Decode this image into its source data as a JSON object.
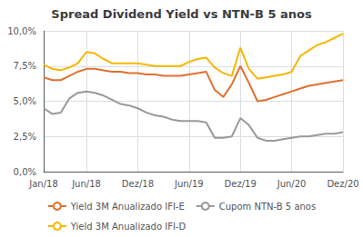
{
  "chart_data": {
    "type": "line",
    "title": "Spread Dividend Yield vs NTN-B 5 anos",
    "categories": [
      "Jan/18",
      null,
      null,
      null,
      null,
      "Jun/18",
      null,
      null,
      null,
      null,
      null,
      "Dez/18",
      null,
      null,
      null,
      null,
      null,
      "Jun/19",
      null,
      null,
      null,
      null,
      null,
      "Dez/19",
      null,
      null,
      null,
      null,
      null,
      "Jun/20",
      null,
      null,
      null,
      null,
      null,
      "Dez/20"
    ],
    "series": [
      {
        "name": "Yield 3M Anualizado IFI-E",
        "color": "#e07030",
        "values": [
          6.7,
          6.5,
          6.5,
          6.8,
          7.1,
          7.3,
          7.3,
          7.2,
          7.1,
          7.1,
          7.0,
          7.0,
          6.9,
          6.9,
          6.8,
          6.8,
          6.8,
          6.9,
          7.0,
          7.1,
          5.8,
          5.3,
          6.2,
          7.5,
          6.3,
          5.0,
          5.1,
          5.3,
          5.5,
          5.7,
          5.9,
          6.1,
          6.2,
          6.3,
          6.4,
          6.5
        ]
      },
      {
        "name": "Cupom NTN-B 5 anos",
        "color": "#999999",
        "values": [
          4.5,
          4.1,
          4.2,
          5.2,
          5.6,
          5.7,
          5.6,
          5.4,
          5.1,
          4.8,
          4.7,
          4.5,
          4.2,
          4.0,
          3.9,
          3.7,
          3.6,
          3.6,
          3.6,
          3.5,
          2.4,
          2.4,
          2.5,
          3.8,
          3.3,
          2.4,
          2.2,
          2.2,
          2.3,
          2.4,
          2.5,
          2.5,
          2.6,
          2.7,
          2.7,
          2.8
        ]
      },
      {
        "name": "Yield 3M Anualizado IFI-D",
        "color": "#f5b800",
        "values": [
          7.6,
          7.3,
          7.2,
          7.4,
          7.7,
          8.5,
          8.4,
          8.0,
          7.7,
          7.7,
          7.7,
          7.7,
          7.6,
          7.5,
          7.5,
          7.5,
          7.5,
          7.8,
          8.0,
          8.1,
          7.4,
          7.0,
          6.8,
          8.8,
          7.3,
          6.6,
          6.7,
          6.8,
          6.9,
          7.1,
          8.2,
          8.6,
          9.0,
          9.2,
          9.5,
          9.8
        ]
      }
    ],
    "ylim": [
      0.0,
      10.0
    ],
    "yticks": [
      {
        "value": 0.0,
        "label": "0,0%"
      },
      {
        "value": 2.5,
        "label": "2,5%"
      },
      {
        "value": 5.0,
        "label": "5,0%"
      },
      {
        "value": 7.5,
        "label": "7,5%"
      },
      {
        "value": 10.0,
        "label": "10,0%"
      }
    ],
    "grid": true,
    "legend": "bottom"
  }
}
